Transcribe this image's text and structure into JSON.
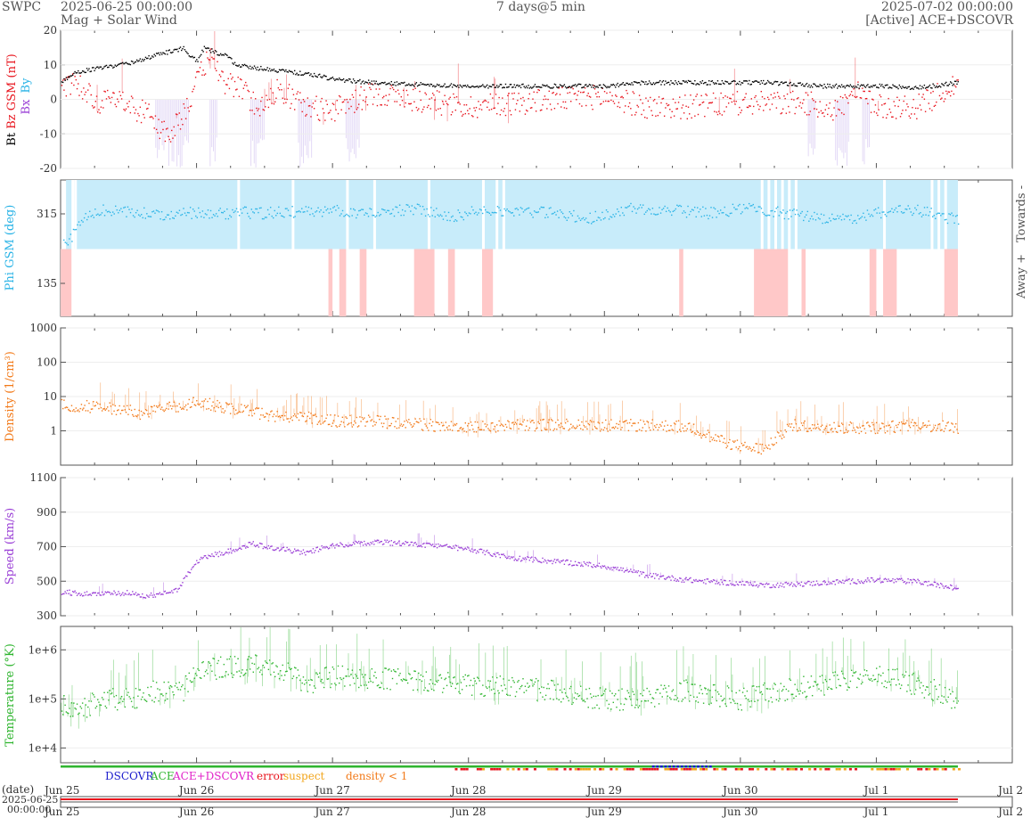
{
  "header": {
    "org": "SWPC",
    "start": "2025-06-25 00:00:00",
    "subtitle": "Mag + Solar Wind",
    "span": "7 days@5 min",
    "end": "2025-07-02 00:00:00",
    "source": "[Active] ACE+DSCOVR"
  },
  "colors": {
    "bt": "#000000",
    "bz": "#e8141d",
    "bx": "#9a3fd6",
    "by": "#29b3e6",
    "phi": "#29b3e6",
    "towards": "#c8ecfa",
    "away": "#ffc8c8",
    "density": "#f27a1a",
    "speed": "#9a3fd6",
    "temperature": "#2fb52f",
    "dscovr": "#1a1acc",
    "ace": "#2fb52f",
    "ace_dscovr": "#e020c8",
    "error": "#e8141d",
    "suspect": "#f2a41a",
    "density_lt1": "#f27a1a"
  },
  "chart_data": [
    {
      "type": "line",
      "ylabel_parts": [
        "Bt",
        "Bz GSM (nT)"
      ],
      "component_labels": [
        "Bx",
        "By"
      ],
      "ylim": [
        -20,
        20
      ],
      "yticks": [
        "20",
        "10",
        "0",
        "-10",
        "-20"
      ],
      "x_unit": "days since 2025-06-25",
      "series": [
        {
          "name": "Bt",
          "x": [
            0,
            0.1,
            0.25,
            0.4,
            0.55,
            0.7,
            0.8,
            0.9,
            0.95,
            1.0,
            1.05,
            1.2,
            1.3,
            1.5,
            1.7,
            1.9,
            2.0,
            2.3,
            2.6,
            3.0,
            3.5,
            4.0,
            4.3,
            4.8,
            5.2,
            5.6,
            6.0,
            6.3,
            6.6
          ],
          "y": [
            5,
            8,
            9,
            10,
            11,
            13,
            14,
            15,
            13,
            11,
            15,
            13,
            10,
            9,
            8,
            7,
            6,
            5,
            4.5,
            4,
            4,
            4,
            5,
            5,
            5,
            4,
            4,
            3.5,
            5
          ]
        },
        {
          "name": "Bz GSM",
          "x": [
            0,
            0.1,
            0.2,
            0.3,
            0.45,
            0.55,
            0.65,
            0.72,
            0.8,
            0.85,
            0.95,
            1.05,
            1.1,
            1.2,
            1.3,
            1.45,
            1.6,
            1.8,
            2.0,
            2.3,
            2.6,
            3.0,
            3.3,
            3.6,
            4.0,
            4.3,
            4.6,
            5.0,
            5.2,
            5.5,
            5.7,
            5.85,
            6.0,
            6.3,
            6.6
          ],
          "y": [
            3,
            6,
            2,
            -1,
            0,
            -3,
            -4,
            -8,
            -10,
            -7,
            0,
            10,
            12,
            5,
            4,
            -2,
            3,
            -2,
            -3,
            2,
            0,
            -2,
            -1,
            0,
            1,
            -2,
            -2,
            -1,
            -1,
            -1,
            -3,
            2,
            -2,
            -2,
            5
          ]
        }
      ]
    },
    {
      "type": "scatter",
      "ylabel": "Phi GSM (deg)",
      "yticks": [
        "315",
        "135"
      ],
      "side_labels": [
        "Towards -",
        "Away +"
      ],
      "x_unit": "days since 2025-06-25",
      "series": [
        {
          "name": "Phi",
          "x": [
            0.05,
            0.15,
            0.3,
            0.5,
            0.7,
            0.9,
            1.1,
            1.3,
            1.5,
            1.7,
            2.0,
            2.3,
            2.6,
            2.9,
            3.1,
            3.3,
            3.6,
            3.9,
            4.2,
            4.5,
            4.8,
            5.0,
            5.2,
            5.5,
            5.8,
            6.0,
            6.3,
            6.6
          ],
          "y": [
            240,
            300,
            325,
            320,
            315,
            320,
            315,
            320,
            318,
            322,
            325,
            318,
            330,
            310,
            330,
            325,
            318,
            305,
            330,
            325,
            318,
            330,
            325,
            310,
            300,
            320,
            325,
            300
          ]
        }
      ]
    },
    {
      "type": "line",
      "ylabel": "Density (1/cm³)",
      "scale": "log",
      "ylim": [
        0.1,
        1000
      ],
      "yticks": [
        "1000",
        "100",
        "10",
        "1"
      ],
      "x_unit": "days since 2025-06-25",
      "series": [
        {
          "name": "Density",
          "x": [
            0,
            0.3,
            0.5,
            0.6,
            0.8,
            1.0,
            1.2,
            1.5,
            1.8,
            2.0,
            2.3,
            2.6,
            3.0,
            3.4,
            3.8,
            4.0,
            4.3,
            4.6,
            4.8,
            5.0,
            5.2,
            5.4,
            5.6,
            6.0,
            6.3,
            6.6
          ],
          "y": [
            6,
            5,
            4,
            3,
            5,
            7,
            5,
            3,
            2.5,
            2,
            2,
            1.6,
            1.3,
            1.5,
            1.6,
            1.5,
            1.5,
            1.4,
            0.6,
            0.35,
            0.3,
            1.5,
            1.3,
            1.3,
            1.5,
            1.3
          ]
        }
      ]
    },
    {
      "type": "line",
      "ylabel": "Speed (km/s)",
      "ylim": [
        300,
        1100
      ],
      "yticks": [
        "1100",
        "900",
        "700",
        "500",
        "300"
      ],
      "x_unit": "days since 2025-06-25",
      "series": [
        {
          "name": "Speed",
          "x": [
            0,
            0.2,
            0.5,
            0.6,
            0.7,
            0.85,
            1.0,
            1.1,
            1.3,
            1.4,
            1.6,
            1.8,
            2.0,
            2.3,
            2.6,
            3.0,
            3.3,
            3.6,
            4.0,
            4.3,
            4.6,
            5.0,
            5.2,
            5.5,
            6.0,
            6.3,
            6.6
          ],
          "y": [
            440,
            430,
            435,
            420,
            420,
            450,
            620,
            650,
            690,
            720,
            690,
            670,
            710,
            730,
            720,
            690,
            640,
            620,
            590,
            540,
            510,
            490,
            480,
            490,
            510,
            500,
            460
          ]
        }
      ]
    },
    {
      "type": "line",
      "ylabel": "Temperature (°K)",
      "scale": "log",
      "ylim": [
        5000,
        3000000
      ],
      "yticks": [
        "1e+6",
        "1e+5",
        "1e+4"
      ],
      "x_unit": "days since 2025-06-25",
      "series": [
        {
          "name": "Temperature",
          "x": [
            0,
            0.1,
            0.3,
            0.5,
            0.7,
            0.9,
            1.0,
            1.2,
            1.4,
            1.6,
            1.8,
            2.0,
            2.3,
            2.6,
            3.0,
            3.3,
            3.6,
            4.0,
            4.3,
            4.6,
            5.0,
            5.3,
            5.6,
            6.0,
            6.3,
            6.6
          ],
          "y": [
            80000,
            50000,
            100000,
            100000,
            150000,
            150000,
            400000,
            450000,
            500000,
            400000,
            200000,
            300000,
            280000,
            250000,
            200000,
            180000,
            150000,
            100000,
            100000,
            150000,
            100000,
            150000,
            200000,
            300000,
            200000,
            90000
          ]
        }
      ]
    }
  ],
  "legend": [
    "DSCOVR",
    "ACE",
    "ACE+DSCOVR",
    "error",
    "suspect",
    "density < 1"
  ],
  "x_axis": {
    "ticks": [
      "Jun 25",
      "Jun 26",
      "Jun 27",
      "Jun 28",
      "Jun 29",
      "Jun 30",
      "Jul 1",
      "Jul 2"
    ],
    "bottom_label_1": "(date)",
    "bottom_label_2": "2025-06-25",
    "bottom_label_3": "00:00:00"
  }
}
